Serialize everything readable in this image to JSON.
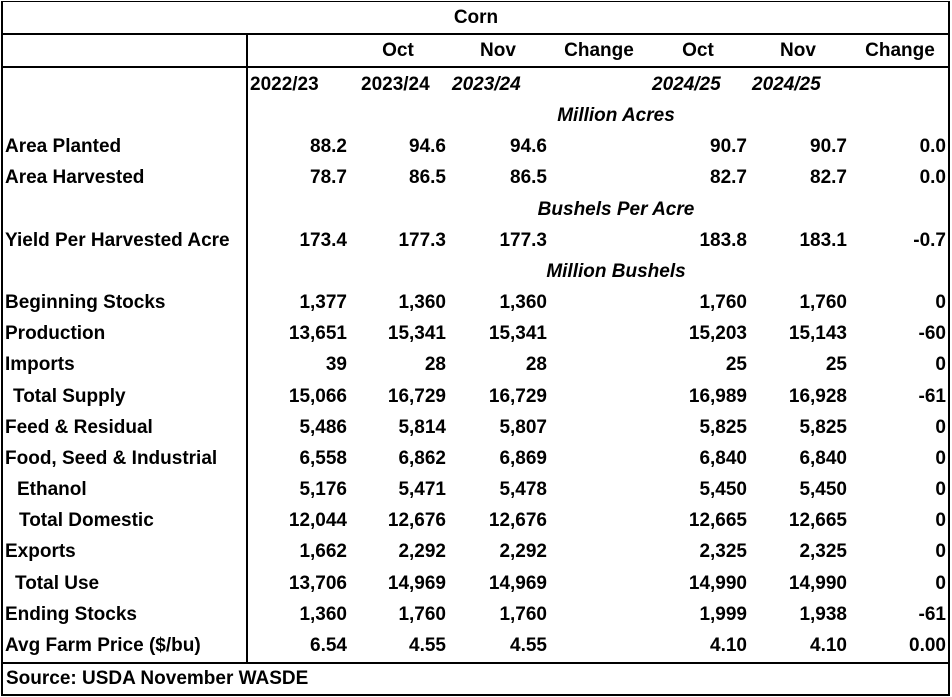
{
  "header": {
    "title": "Corn",
    "months": [
      "Oct",
      "Nov",
      "Change",
      "Oct",
      "Nov",
      "Change"
    ],
    "years": [
      "2022/23",
      "2023/24",
      "2023/24",
      "2024/25",
      "2024/25"
    ]
  },
  "rows": [
    {
      "unit": "Million Acres"
    },
    {
      "label": "Area Planted",
      "cells": [
        "88.2",
        "94.6",
        "94.6",
        "90.7",
        "90.7",
        "0.0"
      ]
    },
    {
      "label": "Area Harvested",
      "cells": [
        "78.7",
        "86.5",
        "86.5",
        "82.7",
        "82.7",
        "0.0"
      ]
    },
    {
      "unit": "Bushels Per Acre"
    },
    {
      "label": "Yield Per Harvested Acre",
      "cells": [
        "173.4",
        "177.3",
        "177.3",
        "183.8",
        "183.1",
        "-0.7"
      ]
    },
    {
      "unit": "Million Bushels"
    },
    {
      "label": "Beginning Stocks",
      "cells": [
        "1,377",
        "1,360",
        "1,360",
        "1,760",
        "1,760",
        "0"
      ]
    },
    {
      "label": "Production",
      "cells": [
        "13,651",
        "15,341",
        "15,341",
        "15,203",
        "15,143",
        "-60"
      ]
    },
    {
      "label": "Imports",
      "cells": [
        "39",
        "28",
        "28",
        "25",
        "25",
        "0"
      ]
    },
    {
      "label": "Total Supply",
      "cells": [
        "15,066",
        "16,729",
        "16,729",
        "16,989",
        "16,928",
        "-61"
      ]
    },
    {
      "label": "Feed & Residual",
      "cells": [
        "5,486",
        "5,814",
        "5,807",
        "5,825",
        "5,825",
        "0"
      ]
    },
    {
      "label": "Food, Seed & Industrial",
      "cells": [
        "6,558",
        "6,862",
        "6,869",
        "6,840",
        "6,840",
        "0"
      ]
    },
    {
      "label": "Ethanol",
      "cells": [
        "5,176",
        "5,471",
        "5,478",
        "5,450",
        "5,450",
        "0"
      ]
    },
    {
      "label": "Total Domestic",
      "cells": [
        "12,044",
        "12,676",
        "12,676",
        "12,665",
        "12,665",
        "0"
      ]
    },
    {
      "label": "Exports",
      "cells": [
        "1,662",
        "2,292",
        "2,292",
        "2,325",
        "2,325",
        "0"
      ]
    },
    {
      "label": "Total Use",
      "cells": [
        "13,706",
        "14,969",
        "14,969",
        "14,990",
        "14,990",
        "0"
      ]
    },
    {
      "label": "Ending Stocks",
      "cells": [
        "1,360",
        "1,760",
        "1,760",
        "1,999",
        "1,938",
        "-61"
      ]
    },
    {
      "label": "Avg Farm Price ($/bu)",
      "cells": [
        "6.54",
        "4.55",
        "4.55",
        "4.10",
        "4.10",
        "0.00"
      ]
    }
  ],
  "source": "Source: USDA November WASDE"
}
